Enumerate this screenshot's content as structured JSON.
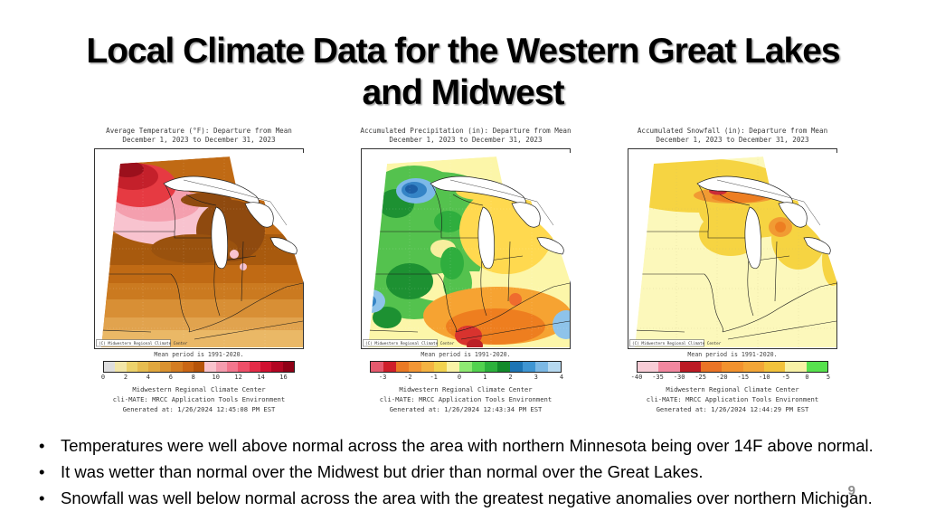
{
  "slide": {
    "title_lines": [
      "Local Climate Data for the Western Great Lakes",
      "and Midwest"
    ],
    "bullets": [
      "Temperatures were well above normal across the area with northern Minnesota being over 14F above normal.",
      "It was wetter than normal over the Midwest but drier than normal over the Great Lakes.",
      "Snowfall was well below normal across the area with the greatest negative anomalies over northern Michigan."
    ],
    "page_number": "9"
  },
  "maps": [
    {
      "id": "temperature",
      "title_line1": "Average Temperature (°F): Departure from Mean",
      "title_line2": "December 1, 2023 to December 31, 2023",
      "stamp": "(C) Midwestern Regional Climate Center",
      "mean_period": "Mean period is 1991-2020.",
      "footer": [
        "Midwestern Regional Climate Center",
        "cli-MATE: MRCC Application Tools Environment",
        "Generated at: 1/26/2024 12:45:08 PM EST"
      ],
      "colorbar": {
        "domain": [
          0,
          17
        ],
        "ticks": [
          0,
          2,
          4,
          6,
          8,
          10,
          12,
          14,
          16
        ],
        "segment_colors": [
          "#dedede",
          "#f2e6a8",
          "#ecd26c",
          "#e6bc50",
          "#e0a73e",
          "#da9230",
          "#d47d22",
          "#c96614",
          "#b5540a",
          "#f9c3cd",
          "#f59cae",
          "#f3768d",
          "#ee4f68",
          "#e42b47",
          "#d11030",
          "#b20522",
          "#8f0016"
        ]
      }
    },
    {
      "id": "precipitation",
      "title_line1": "Accumulated Precipitation (in): Departure from Mean",
      "title_line2": "December 1, 2023 to December 31, 2023",
      "stamp": "(C) Midwestern Regional Climate Center",
      "mean_period": "Mean period is 1991-2020.",
      "footer": [
        "Midwestern Regional Climate Center",
        "cli-MATE: MRCC Application Tools Environment",
        "Generated at: 1/26/2024 12:43:34 PM EST"
      ],
      "colorbar": {
        "domain": [
          -3.5,
          4
        ],
        "ticks": [
          -3,
          -2,
          -1,
          0,
          1,
          2,
          3,
          4
        ],
        "segment_colors": [
          "#e55a6e",
          "#cf1f2a",
          "#ea7a24",
          "#f39634",
          "#f5b342",
          "#f2d24e",
          "#faf3a6",
          "#8ee973",
          "#52d24f",
          "#2cb13c",
          "#128a2a",
          "#1d74b4",
          "#3f95d2",
          "#7cb8e4",
          "#b6d9f0"
        ]
      }
    },
    {
      "id": "snowfall",
      "title_line1": "Accumulated Snowfall (in): Departure from Mean",
      "title_line2": "December 1, 2023 to December 31, 2023",
      "stamp": "(C) Midwestern Regional Climate Center",
      "mean_period": "Mean period is 1991-2020.",
      "footer": [
        "Midwestern Regional Climate Center",
        "cli-MATE: MRCC Application Tools Environment",
        "Generated at: 1/26/2024 12:44:29 PM EST"
      ],
      "colorbar": {
        "domain": [
          -40,
          5
        ],
        "ticks": [
          -40,
          -35,
          -30,
          -25,
          -20,
          -15,
          -10,
          -5,
          0,
          5
        ],
        "segment_colors": [
          "#f8ccd6",
          "#f2879f",
          "#bc1a24",
          "#ea7426",
          "#f2922e",
          "#f3a637",
          "#f2c23c",
          "#f8f2a6",
          "#57e24e"
        ]
      }
    }
  ]
}
